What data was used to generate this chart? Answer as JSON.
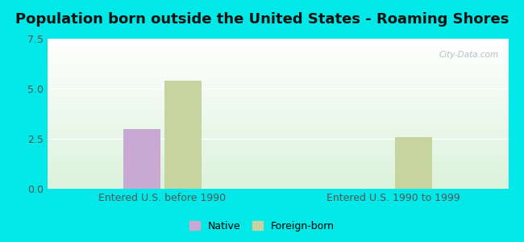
{
  "title": "Population born outside the United States - Roaming Shores",
  "title_fontsize": 13,
  "groups": [
    "Entered U.S. before 1990",
    "Entered U.S. 1990 to 1999"
  ],
  "series": {
    "Native": [
      3.0,
      0
    ],
    "Foreign-born": [
      5.4,
      2.6
    ]
  },
  "bar_colors": {
    "Native": "#c9a8d4",
    "Foreign-born": "#c8d4a0"
  },
  "ylim": [
    0,
    7.5
  ],
  "yticks": [
    0,
    2.5,
    5,
    7.5
  ],
  "bar_width": 0.08,
  "group_positions": [
    0.25,
    0.75
  ],
  "background_outer": "#00e8e8",
  "watermark": "City-Data.com",
  "legend_labels": [
    "Native",
    "Foreign-born"
  ],
  "tick_fontsize": 9,
  "xlabel_fontsize": 9
}
